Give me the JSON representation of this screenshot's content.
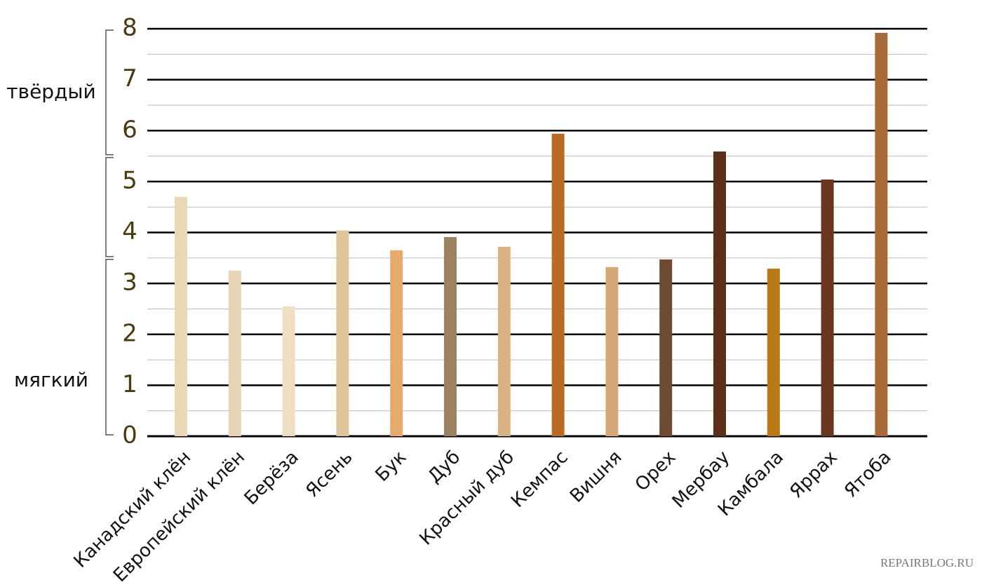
{
  "chart_data": {
    "type": "bar",
    "categories": [
      "Канадский клён",
      "Европейский клён",
      "Берёза",
      "Ясень",
      "Бук",
      "Дуб",
      "Красный дуб",
      "Кемпас",
      "Вишня",
      "Орех",
      "Мербау",
      "Камбала",
      "Яррах",
      "Ятоба"
    ],
    "values": [
      4.7,
      3.25,
      2.55,
      4.04,
      3.65,
      3.91,
      3.72,
      5.94,
      3.32,
      3.47,
      5.59,
      3.29,
      5.04,
      7.92
    ],
    "colors": [
      "#ead7b4",
      "#e8d3b4",
      "#efdfc2",
      "#e0c59b",
      "#e6ab6c",
      "#9c8360",
      "#dab384",
      "#b96b24",
      "#d6a778",
      "#6e4a30",
      "#5c2f19",
      "#b97a16",
      "#6b3520",
      "#a86a38"
    ],
    "ylim": [
      0,
      8
    ],
    "yticks": [
      0,
      1,
      2,
      3,
      4,
      5,
      6,
      7,
      8
    ],
    "grid": true,
    "minor_grid": true,
    "bands": [
      {
        "label": "твёрдый",
        "from": 5.5,
        "to": 8
      },
      {
        "from": 3.5,
        "to": 5.5
      },
      {
        "label": "мягкий",
        "from": 0,
        "to": 3.5
      }
    ],
    "watermark": "REPAIRBLOG.RU"
  }
}
